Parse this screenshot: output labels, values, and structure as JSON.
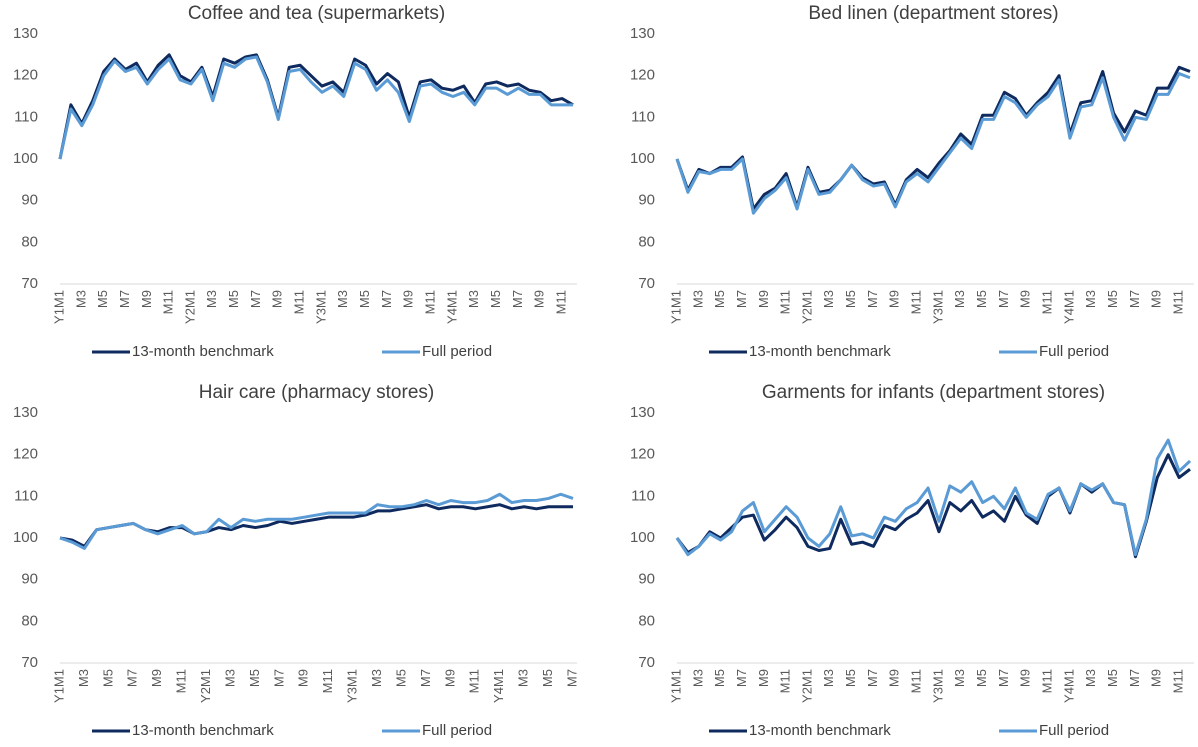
{
  "chart_data": [
    {
      "type": "line",
      "title": "Coffee and tea (supermarkets)",
      "categories": [
        "Y1M1",
        null,
        "M3",
        null,
        "M5",
        null,
        "M7",
        null,
        "M9",
        null,
        "M11",
        null,
        "Y2M1",
        null,
        "M3",
        null,
        "M5",
        null,
        "M7",
        null,
        "M9",
        null,
        "M11",
        null,
        "Y3M1",
        null,
        "M3",
        null,
        "M5",
        null,
        "M7",
        null,
        "M9",
        null,
        "M11",
        null,
        "Y4M1",
        null,
        "M3",
        null,
        "M5",
        null,
        "M7",
        null,
        "M9",
        null,
        "M11",
        null
      ],
      "series": [
        {
          "name": "13-month benchmark",
          "color": "#0e2a5e",
          "values": [
            100,
            113,
            108.5,
            114,
            121,
            124,
            121.5,
            123,
            118.5,
            122.5,
            125,
            120,
            118.5,
            122,
            115,
            124,
            123,
            124.5,
            125,
            119,
            110,
            122,
            122.5,
            120,
            117.5,
            118.5,
            116,
            124,
            122.5,
            118,
            120.5,
            118.5,
            110,
            118.5,
            119,
            117,
            116.5,
            117.5,
            113.5,
            118,
            118.5,
            117.5,
            118,
            116.5,
            116,
            114,
            114.5,
            113
          ]
        },
        {
          "name": "Full period",
          "color": "#5b9bd5",
          "values": [
            100,
            112,
            108,
            113,
            120,
            123.5,
            121,
            122,
            118,
            121.5,
            124,
            119,
            118,
            121.5,
            114,
            123,
            122,
            124,
            124.5,
            118.5,
            109.5,
            121,
            121.5,
            118.5,
            116,
            117.5,
            115,
            123,
            121.5,
            116.5,
            119,
            116,
            109,
            117.5,
            118,
            116,
            115,
            116,
            113,
            117,
            117,
            115.5,
            117,
            115.5,
            115.5,
            113,
            113,
            113
          ]
        }
      ],
      "ylim": [
        70,
        130
      ],
      "yticks": [
        70,
        80,
        90,
        100,
        110,
        120,
        130
      ],
      "legend": "bottom"
    },
    {
      "type": "line",
      "title": "Bed linen (department stores)",
      "categories": [
        "Y1M1",
        null,
        "M3",
        null,
        "M5",
        null,
        "M7",
        null,
        "M9",
        null,
        "M11",
        null,
        "Y2M1",
        null,
        "M3",
        null,
        "M5",
        null,
        "M7",
        null,
        "M9",
        null,
        "M11",
        null,
        "Y3M1",
        null,
        "M3",
        null,
        "M5",
        null,
        "M7",
        null,
        "M9",
        null,
        "M11",
        null,
        "Y4M1",
        null,
        "M3",
        null,
        "M5",
        null,
        "M7",
        null,
        "M9",
        null,
        "M11",
        null
      ],
      "series": [
        {
          "name": "13-month benchmark",
          "color": "#0e2a5e",
          "values": [
            100,
            92.5,
            97.5,
            96.5,
            98,
            98,
            100.5,
            88,
            91.5,
            93,
            96.5,
            88.5,
            98,
            92,
            92.5,
            95,
            98.5,
            95.5,
            94,
            94.5,
            89,
            95,
            97.5,
            95.5,
            99,
            102,
            106,
            103.5,
            110.5,
            110.5,
            116,
            114.5,
            110.5,
            113.5,
            116,
            120,
            106,
            113.5,
            114,
            121,
            111,
            106.5,
            111.5,
            110.5,
            117,
            117,
            122,
            121
          ]
        },
        {
          "name": "Full period",
          "color": "#5b9bd5",
          "values": [
            100,
            92,
            97,
            96.5,
            97.5,
            97.5,
            100,
            87,
            90.5,
            92.5,
            95.5,
            88,
            97.5,
            91.5,
            92,
            95,
            98.5,
            95,
            93.5,
            94,
            88.5,
            94.5,
            96.5,
            94.5,
            98,
            101.5,
            105,
            102.5,
            109.5,
            109.5,
            115,
            113.5,
            110,
            113,
            115,
            119,
            105,
            112.5,
            113,
            119.5,
            110,
            104.5,
            110,
            109.5,
            115.5,
            115.5,
            120.5,
            119.5
          ]
        }
      ],
      "ylim": [
        70,
        130
      ],
      "yticks": [
        70,
        80,
        90,
        100,
        110,
        120,
        130
      ],
      "legend": "bottom"
    },
    {
      "type": "line",
      "title": "Hair care (pharmacy stores)",
      "categories": [
        "Y1M1",
        null,
        "M3",
        null,
        "M5",
        null,
        "M7",
        null,
        "M9",
        null,
        "M11",
        null,
        "Y2M1",
        null,
        "M3",
        null,
        "M5",
        null,
        "M7",
        null,
        "M9",
        null,
        "M11",
        null,
        "Y3M1",
        null,
        "M3",
        null,
        "M5",
        null,
        "M7",
        null,
        "M9",
        null,
        "M11",
        null,
        "Y4M1",
        null,
        "M3",
        null,
        "M5",
        null,
        "M7"
      ],
      "series": [
        {
          "name": "13-month benchmark",
          "color": "#0e2a5e",
          "values": [
            100,
            99.5,
            98,
            102,
            102.5,
            103,
            103.5,
            102,
            101.5,
            102.5,
            102.5,
            101,
            101.5,
            102.5,
            102,
            103,
            102.5,
            103,
            104,
            103.5,
            104,
            104.5,
            105,
            105,
            105,
            105.5,
            106.5,
            106.5,
            107,
            107.5,
            108,
            107,
            107.5,
            107.5,
            107,
            107.5,
            108,
            107,
            107.5,
            107,
            107.5,
            107.5,
            107.5
          ]
        },
        {
          "name": "Full period",
          "color": "#5b9bd5",
          "values": [
            100,
            99,
            97.5,
            102,
            102.5,
            103,
            103.5,
            102,
            101,
            102,
            103,
            101,
            101.5,
            104.5,
            102.5,
            104.5,
            104,
            104.5,
            104.5,
            104.5,
            105,
            105.5,
            106,
            106,
            106,
            106,
            108,
            107.5,
            107.5,
            108,
            109,
            108,
            109,
            108.5,
            108.5,
            109,
            110.5,
            108.5,
            109,
            109,
            109.5,
            110.5,
            109.5
          ]
        }
      ],
      "ylim": [
        70,
        130
      ],
      "yticks": [
        70,
        80,
        90,
        100,
        110,
        120,
        130
      ],
      "legend": "bottom"
    },
    {
      "type": "line",
      "title": "Garments for infants (department stores)",
      "categories": [
        "Y1M1",
        null,
        "M3",
        null,
        "M5",
        null,
        "M7",
        null,
        "M9",
        null,
        "M11",
        null,
        "Y2M1",
        null,
        "M3",
        null,
        "M5",
        null,
        "M7",
        null,
        "M9",
        null,
        "M11",
        null,
        "Y3M1",
        null,
        "M3",
        null,
        "M5",
        null,
        "M7",
        null,
        "M9",
        null,
        "M11",
        null,
        "Y4M1",
        null,
        "M3",
        null,
        "M5",
        null,
        "M7",
        null,
        "M9",
        null,
        "M11",
        null
      ],
      "series": [
        {
          "name": "13-month benchmark",
          "color": "#0e2a5e",
          "values": [
            100,
            96.5,
            98,
            101.5,
            100,
            102.5,
            105,
            105.5,
            99.5,
            102,
            105,
            102.5,
            98,
            97,
            97.5,
            104.5,
            98.5,
            99,
            98,
            103,
            102,
            104.5,
            106,
            109,
            101.5,
            108.5,
            106.5,
            109,
            105,
            106.5,
            104,
            110,
            105.5,
            103.5,
            110,
            112,
            106,
            113,
            111,
            113,
            108.5,
            108,
            95.5,
            104,
            114.5,
            120,
            114.5,
            116.5
          ]
        },
        {
          "name": "Full period",
          "color": "#5b9bd5",
          "values": [
            100,
            96,
            98,
            101,
            99.5,
            101.5,
            106.5,
            108.5,
            101.5,
            104.5,
            107.5,
            105,
            100,
            98,
            101,
            107.5,
            100.5,
            101,
            100,
            105,
            104,
            107,
            108.5,
            112,
            104,
            112.5,
            111,
            113.5,
            108.5,
            110,
            107,
            112,
            106,
            104.5,
            110.5,
            112,
            106.5,
            113,
            111.5,
            113,
            108.5,
            108,
            96,
            104.5,
            119,
            123.5,
            116,
            118.5
          ]
        }
      ],
      "ylim": [
        70,
        130
      ],
      "yticks": [
        70,
        80,
        90,
        100,
        110,
        120,
        130
      ],
      "legend": "bottom"
    }
  ]
}
